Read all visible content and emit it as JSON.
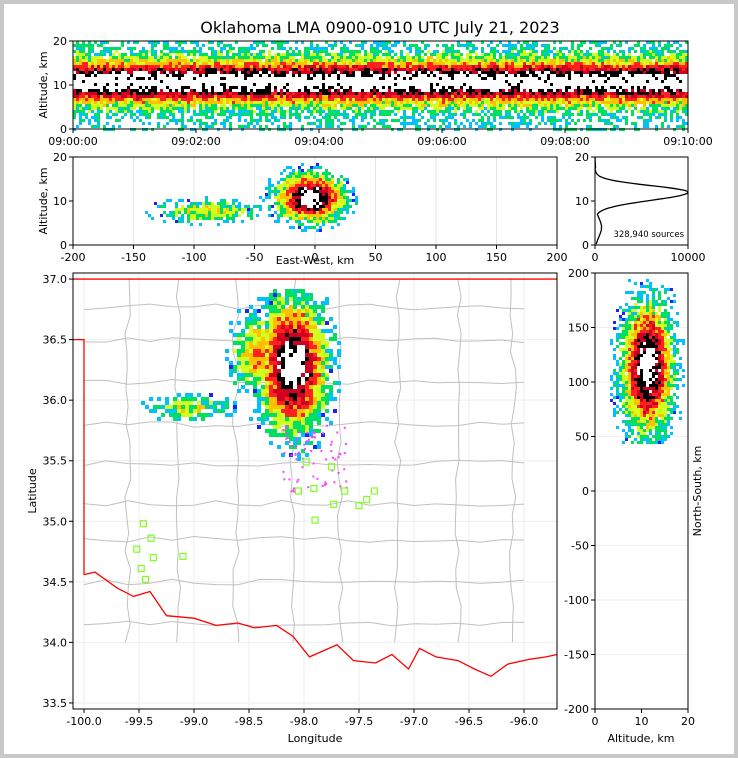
{
  "chart_data": {
    "type": "heatmap",
    "title": "Oklahoma LMA 0900-0910 UTC July 21, 2023",
    "panels": {
      "altitude_time": {
        "ylabel": "Altitude, km",
        "ylim": [
          0,
          20
        ],
        "y_ticks": [
          "0",
          "10",
          "20"
        ],
        "x_ticks": [
          "09:00:00",
          "09:02:00",
          "09:04:00",
          "09:06:00",
          "09:08:00",
          "09:10:00"
        ]
      },
      "altitude_east_west": {
        "ylabel": "Altitude, km",
        "xlabel": "East-West, km",
        "xlim": [
          -200,
          200
        ],
        "ylim": [
          0,
          20
        ],
        "x_ticks": [
          "-200",
          "-150",
          "-100",
          "-50",
          "0",
          "50",
          "100",
          "150",
          "200"
        ],
        "y_ticks": [
          "0",
          "10",
          "20"
        ]
      },
      "altitude_histogram": {
        "x_ticks": [
          "0",
          "10000"
        ],
        "y_ticks": [
          "0",
          "10",
          "20"
        ],
        "annotation": "328,940 sources",
        "peak_altitude_km": 12,
        "peak_count": 10000
      },
      "plan_view": {
        "xlabel": "Longitude",
        "ylabel": "Latitude",
        "xlim": [
          -100.1,
          -95.7
        ],
        "ylim": [
          33.45,
          37.05
        ],
        "x_ticks": [
          "-100.0",
          "-99.5",
          "-99.0",
          "-98.5",
          "-98.0",
          "-97.5",
          "-97.0",
          "-96.5",
          "-96.0"
        ],
        "y_ticks": [
          "33.5",
          "34.0",
          "34.5",
          "35.0",
          "35.5",
          "36.0",
          "36.5",
          "37.0"
        ],
        "stations": [
          {
            "lon": -99.46,
            "lat": 34.98
          },
          {
            "lon": -99.39,
            "lat": 34.86
          },
          {
            "lon": -99.52,
            "lat": 34.77
          },
          {
            "lon": -99.37,
            "lat": 34.7
          },
          {
            "lon": -99.48,
            "lat": 34.61
          },
          {
            "lon": -99.44,
            "lat": 34.52
          },
          {
            "lon": -99.1,
            "lat": 34.71
          },
          {
            "lon": -97.98,
            "lat": 35.49
          },
          {
            "lon": -98.05,
            "lat": 35.25
          },
          {
            "lon": -97.91,
            "lat": 35.27
          },
          {
            "lon": -97.9,
            "lat": 35.01
          },
          {
            "lon": -97.75,
            "lat": 35.45
          },
          {
            "lon": -97.73,
            "lat": 35.14
          },
          {
            "lon": -97.63,
            "lat": 35.25
          },
          {
            "lon": -97.5,
            "lat": 35.13
          },
          {
            "lon": -97.43,
            "lat": 35.18
          },
          {
            "lon": -97.36,
            "lat": 35.25
          }
        ]
      },
      "north_south_altitude": {
        "xlabel": "Altitude, km",
        "ylabel": "North-South, km",
        "xlim": [
          0,
          20
        ],
        "ylim": [
          -200,
          200
        ],
        "x_ticks": [
          "0",
          "10",
          "20"
        ],
        "y_ticks": [
          "-200",
          "-150",
          "-100",
          "-50",
          "0",
          "50",
          "100",
          "150",
          "200"
        ]
      }
    },
    "colors": {
      "density_low_to_high": [
        "#2020ff",
        "#00c0ff",
        "#00e060",
        "#d0ff20",
        "#ffc000",
        "#ff2020",
        "#d00020",
        "#000000",
        "#ffffff"
      ],
      "state_border": "#ff0000",
      "county_lines": "#c0c0c0",
      "stations": "#80ff20",
      "stray_sources": "#ff40ff"
    }
  }
}
